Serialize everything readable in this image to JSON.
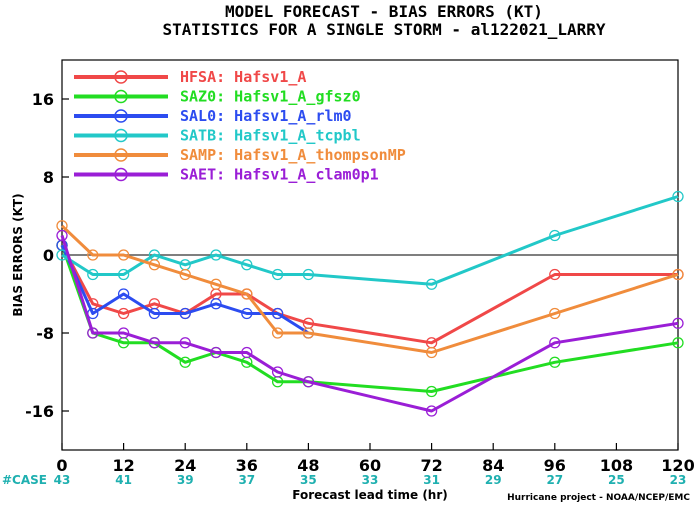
{
  "chart_data": {
    "type": "line",
    "title": "MODEL FORECAST - BIAS ERRORS (KT)",
    "subtitle": "STATISTICS FOR A SINGLE STORM - al122021_LARRY",
    "xlabel": "Forecast lead time (hr)",
    "ylabel": "BIAS ERRORS (KT)",
    "xlim": [
      0,
      120
    ],
    "ylim": [
      -20,
      20
    ],
    "xticks": [
      0,
      12,
      24,
      36,
      48,
      60,
      72,
      84,
      96,
      108,
      120
    ],
    "yticks": [
      -16,
      -8,
      0,
      8,
      16
    ],
    "legend_position": "top-left",
    "grid": false,
    "zero_line": true,
    "case_label": "#CASE",
    "case_x": [
      0,
      12,
      24,
      36,
      48,
      60,
      72,
      84,
      96,
      108,
      120
    ],
    "case_counts": [
      "43",
      "41",
      "39",
      "37",
      "35",
      "33",
      "31",
      "29",
      "27",
      "25",
      "23"
    ],
    "credit": "Hurricane project - NOAA/NCEP/EMC",
    "series": [
      {
        "name": "HFSA: Hafsv1_A",
        "color": "#f04848",
        "x": [
          0,
          6,
          12,
          18,
          24,
          30,
          36,
          42,
          48,
          72,
          96,
          120
        ],
        "y": [
          1,
          -5,
          -6,
          -5,
          -6,
          -4,
          -4,
          -6,
          -7,
          -9,
          -2,
          -2
        ]
      },
      {
        "name": "SAZ0: Hafsv1_A_gfsz0",
        "color": "#22dd22",
        "x": [
          0,
          6,
          12,
          18,
          24,
          30,
          36,
          42,
          48,
          72,
          96,
          120
        ],
        "y": [
          1,
          -8,
          -9,
          -9,
          -11,
          -10,
          -11,
          -13,
          -13,
          -14,
          -11,
          -9
        ]
      },
      {
        "name": "SAL0: Hafsv1_A_rlm0",
        "color": "#2c4cf0",
        "x": [
          0,
          6,
          12,
          18,
          24,
          30,
          36,
          42,
          48
        ],
        "y": [
          1,
          -6,
          -4,
          -6,
          -6,
          -5,
          -6,
          -6,
          -8
        ]
      },
      {
        "name": "SATB: Hafsv1_A_tcpbl",
        "color": "#22c8c8",
        "x": [
          0,
          6,
          12,
          18,
          24,
          30,
          36,
          42,
          48,
          72,
          96,
          120
        ],
        "y": [
          0,
          -2,
          -2,
          0,
          -1,
          0,
          -1,
          -2,
          -2,
          -3,
          2,
          6
        ]
      },
      {
        "name": "SAMP: Hafsv1_A_thompsonMP",
        "color": "#f08c3c",
        "x": [
          0,
          6,
          12,
          18,
          24,
          30,
          36,
          42,
          48,
          72,
          96,
          120
        ],
        "y": [
          3,
          0,
          0,
          -1,
          -2,
          -3,
          -4,
          -8,
          -8,
          -10,
          -6,
          -2
        ]
      },
      {
        "name": "SAET: Hafsv1_A_clam0p1",
        "color": "#9a1ed6",
        "x": [
          0,
          6,
          12,
          18,
          24,
          30,
          36,
          42,
          48,
          72,
          96,
          120
        ],
        "y": [
          2,
          -8,
          -8,
          -9,
          -9,
          -10,
          -10,
          -12,
          -13,
          -16,
          -9,
          -7
        ]
      }
    ]
  }
}
